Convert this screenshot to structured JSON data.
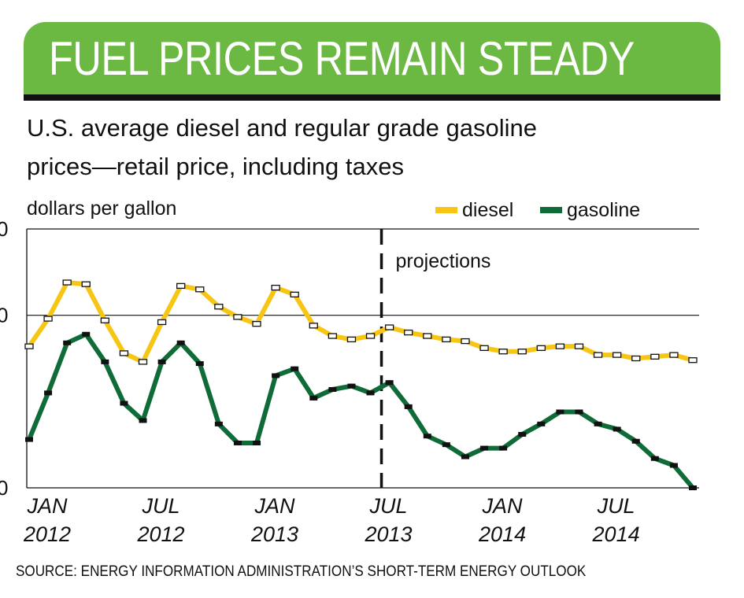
{
  "title": "FUEL PRICES REMAIN STEADY",
  "subtitle_line1": "U.S. average diesel and regular grade gasoline",
  "subtitle_line2": "prices—retail price, including taxes",
  "source": "SOURCE: ENERGY INFORMATION ADMINISTRATION’S SHORT-TERM ENERGY OUTLOOK",
  "colors": {
    "banner": "#6bb843",
    "diesel": "#f7c614",
    "gasoline": "#0f6b37"
  },
  "chart_data": {
    "type": "line",
    "ylabel": "dollars per gallon",
    "ylim": [
      3.0,
      4.5
    ],
    "ytick_labels": [
      "0",
      "0",
      "0"
    ],
    "gridlines": [
      4.0
    ],
    "x_tick_labels": [
      [
        "JAN",
        "2012"
      ],
      [
        "JUL",
        "2012"
      ],
      [
        "JAN",
        "2013"
      ],
      [
        "JUL",
        "2013"
      ],
      [
        "JAN",
        "2014"
      ],
      [
        "JUL",
        "2014"
      ]
    ],
    "x": [
      "2012-01",
      "2012-02",
      "2012-03",
      "2012-04",
      "2012-05",
      "2012-06",
      "2012-07",
      "2012-08",
      "2012-09",
      "2012-10",
      "2012-11",
      "2012-12",
      "2013-01",
      "2013-02",
      "2013-03",
      "2013-04",
      "2013-05",
      "2013-06",
      "2013-07",
      "2013-08",
      "2013-09",
      "2013-10",
      "2013-11",
      "2013-12",
      "2014-01",
      "2014-02",
      "2014-03",
      "2014-04",
      "2014-05",
      "2014-06",
      "2014-07",
      "2014-08",
      "2014-09",
      "2014-10",
      "2014-11",
      "2014-12"
    ],
    "series": [
      {
        "name": "diesel",
        "values": [
          3.82,
          3.98,
          4.19,
          4.18,
          3.97,
          3.78,
          3.73,
          3.96,
          4.17,
          4.15,
          4.05,
          3.99,
          3.95,
          4.16,
          4.12,
          3.94,
          3.88,
          3.86,
          3.88,
          3.93,
          3.9,
          3.88,
          3.86,
          3.85,
          3.81,
          3.79,
          3.79,
          3.81,
          3.82,
          3.82,
          3.77,
          3.77,
          3.75,
          3.76,
          3.77,
          3.74
        ]
      },
      {
        "name": "gasoline",
        "values": [
          3.28,
          3.55,
          3.84,
          3.89,
          3.73,
          3.49,
          3.39,
          3.73,
          3.84,
          3.72,
          3.37,
          3.26,
          3.26,
          3.65,
          3.69,
          3.52,
          3.57,
          3.59,
          3.55,
          3.61,
          3.47,
          3.3,
          3.25,
          3.18,
          3.23,
          3.23,
          3.31,
          3.37,
          3.44,
          3.44,
          3.37,
          3.34,
          3.27,
          3.17,
          3.13,
          3.0
        ]
      }
    ],
    "projection_start": "2013-07",
    "annotation": "projections"
  }
}
